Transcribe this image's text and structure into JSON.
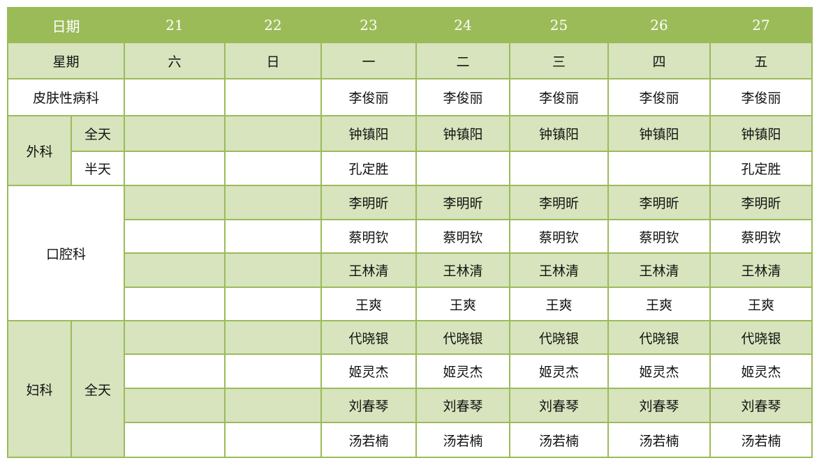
{
  "header": {
    "label": "日期",
    "dates": [
      "21",
      "22",
      "23",
      "24",
      "25",
      "26",
      "27"
    ]
  },
  "weekday_row": {
    "label": "星期",
    "days": [
      "六",
      "日",
      "一",
      "二",
      "三",
      "四",
      "五"
    ]
  },
  "colors": {
    "header": "#9bbb59",
    "band": "#d7e4bd",
    "grid": "#9bbb59"
  },
  "departments": [
    {
      "name": "皮肤性病科",
      "rows": [
        {
          "shade": "w",
          "cells": [
            "",
            "",
            "李俊丽",
            "李俊丽",
            "李俊丽",
            "李俊丽",
            "李俊丽"
          ]
        }
      ]
    },
    {
      "name": "外科",
      "rows": [
        {
          "sub": "全天",
          "shade": "l",
          "cells": [
            "",
            "",
            "钟镇阳",
            "钟镇阳",
            "钟镇阳",
            "钟镇阳",
            "钟镇阳"
          ]
        },
        {
          "sub": "半天",
          "shade": "w",
          "cells": [
            "",
            "",
            "孔定胜",
            "",
            "",
            "",
            "孔定胜"
          ]
        }
      ]
    },
    {
      "name": "口腔科",
      "rows": [
        {
          "shade": "l",
          "cells": [
            "",
            "",
            "李明昕",
            "李明昕",
            "李明昕",
            "李明昕",
            "李明昕"
          ]
        },
        {
          "shade": "w",
          "cells": [
            "",
            "",
            "蔡明钦",
            "蔡明钦",
            "蔡明钦",
            "蔡明钦",
            "蔡明钦"
          ]
        },
        {
          "shade": "l",
          "cells": [
            "",
            "",
            "王林清",
            "王林清",
            "王林清",
            "王林清",
            "王林清"
          ]
        },
        {
          "shade": "w",
          "cells": [
            "",
            "",
            "王爽",
            "王爽",
            "王爽",
            "王爽",
            "王爽"
          ]
        }
      ]
    },
    {
      "name": "妇科",
      "sub": "全天",
      "rows": [
        {
          "shade": "l",
          "cells": [
            "",
            "",
            "代晓银",
            "代晓银",
            "代晓银",
            "代晓银",
            "代晓银"
          ]
        },
        {
          "shade": "w",
          "cells": [
            "",
            "",
            "姬灵杰",
            "姬灵杰",
            "姬灵杰",
            "姬灵杰",
            "姬灵杰"
          ]
        },
        {
          "shade": "l",
          "cells": [
            "",
            "",
            "刘春琴",
            "刘春琴",
            "刘春琴",
            "刘春琴",
            "刘春琴"
          ]
        },
        {
          "shade": "w",
          "cells": [
            "",
            "",
            "汤若楠",
            "汤若楠",
            "汤若楠",
            "汤若楠",
            "汤若楠"
          ]
        }
      ]
    }
  ]
}
